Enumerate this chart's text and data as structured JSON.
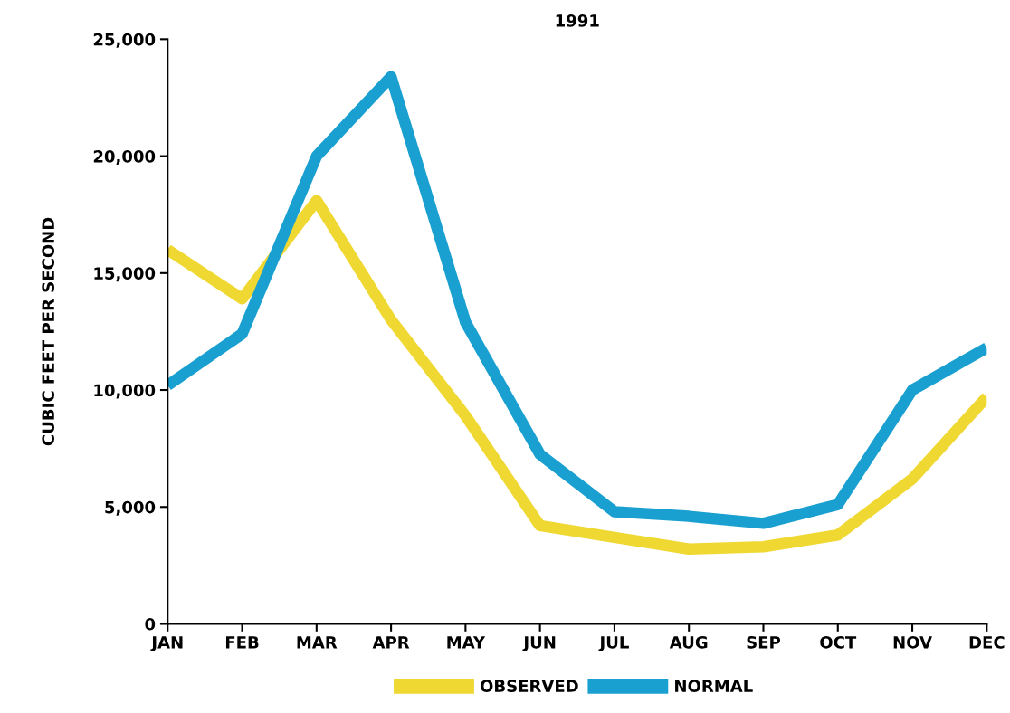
{
  "chart_data": {
    "type": "line",
    "title": "1991",
    "ylabel": "CUBIC FEET PER SECOND",
    "categories": [
      "JAN",
      "FEB",
      "MAR",
      "APR",
      "MAY",
      "JUN",
      "JUL",
      "AUG",
      "SEP",
      "OCT",
      "NOV",
      "DEC"
    ],
    "series": [
      {
        "name": "OBSERVED",
        "color": "#f0d832",
        "values": [
          16000,
          13900,
          18100,
          13000,
          8900,
          4200,
          3700,
          3200,
          3300,
          3800,
          6200,
          9700
        ]
      },
      {
        "name": "NORMAL",
        "color": "#1aa0d0",
        "values": [
          10200,
          12400,
          20000,
          23400,
          12900,
          7250,
          4800,
          4600,
          4300,
          5100,
          10000,
          11800
        ]
      }
    ],
    "ylim": [
      0,
      25000
    ],
    "yticks": [
      {
        "value": 0,
        "label": "0"
      },
      {
        "value": 5000,
        "label": "5,000"
      },
      {
        "value": 10000,
        "label": "10,000"
      },
      {
        "value": 15000,
        "label": "15,000"
      },
      {
        "value": 20000,
        "label": "20,000"
      },
      {
        "value": 25000,
        "label": "25,000"
      }
    ],
    "grid": false,
    "legend": "bottom",
    "marker": "none",
    "line_style": "solid"
  }
}
